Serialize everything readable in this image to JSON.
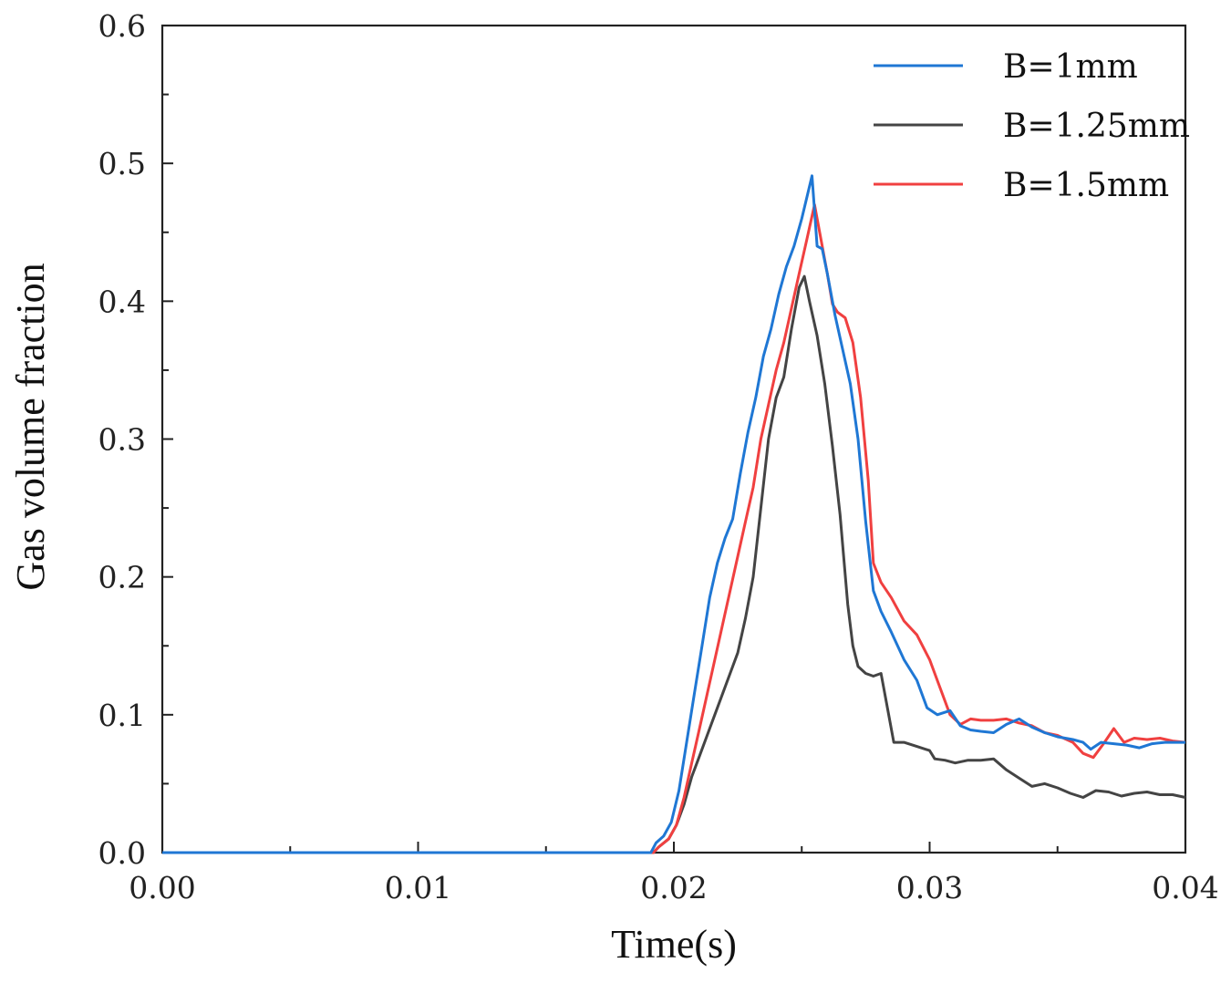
{
  "chart_data": {
    "type": "line",
    "title": "",
    "xlabel": "Time(s)",
    "ylabel": "Gas volume fraction",
    "xlim": [
      0.0,
      0.04
    ],
    "ylim": [
      0.0,
      0.6
    ],
    "xticks": [
      "0.00",
      "0.01",
      "0.02",
      "0.03",
      "0.04"
    ],
    "xtick_values": [
      0.0,
      0.01,
      0.02,
      0.03,
      0.04
    ],
    "yticks": [
      "0.0",
      "0.1",
      "0.2",
      "0.3",
      "0.4",
      "0.5",
      "0.6"
    ],
    "ytick_values": [
      0.0,
      0.1,
      0.2,
      0.3,
      0.4,
      0.5,
      0.6
    ],
    "grid": false,
    "legend_position": "top-right",
    "series": [
      {
        "name": "B=1mm",
        "color": "#1f77d4",
        "points": [
          [
            0.0,
            0.0
          ],
          [
            0.0191,
            0.0
          ],
          [
            0.0193,
            0.007
          ],
          [
            0.0196,
            0.012
          ],
          [
            0.0199,
            0.022
          ],
          [
            0.0202,
            0.045
          ],
          [
            0.0205,
            0.08
          ],
          [
            0.0208,
            0.115
          ],
          [
            0.0211,
            0.15
          ],
          [
            0.0214,
            0.185
          ],
          [
            0.0217,
            0.21
          ],
          [
            0.022,
            0.228
          ],
          [
            0.0223,
            0.242
          ],
          [
            0.0226,
            0.275
          ],
          [
            0.0229,
            0.305
          ],
          [
            0.0232,
            0.33
          ],
          [
            0.0235,
            0.36
          ],
          [
            0.0238,
            0.38
          ],
          [
            0.0241,
            0.405
          ],
          [
            0.0244,
            0.425
          ],
          [
            0.0247,
            0.44
          ],
          [
            0.025,
            0.46
          ],
          [
            0.0254,
            0.491
          ],
          [
            0.0256,
            0.44
          ],
          [
            0.0258,
            0.438
          ],
          [
            0.026,
            0.42
          ],
          [
            0.0263,
            0.39
          ],
          [
            0.0266,
            0.365
          ],
          [
            0.0269,
            0.34
          ],
          [
            0.0272,
            0.3
          ],
          [
            0.0275,
            0.24
          ],
          [
            0.0278,
            0.19
          ],
          [
            0.0281,
            0.175
          ],
          [
            0.0285,
            0.16
          ],
          [
            0.029,
            0.14
          ],
          [
            0.0295,
            0.125
          ],
          [
            0.0299,
            0.105
          ],
          [
            0.0303,
            0.1
          ],
          [
            0.0308,
            0.103
          ],
          [
            0.0312,
            0.092
          ],
          [
            0.0316,
            0.089
          ],
          [
            0.032,
            0.088
          ],
          [
            0.0325,
            0.087
          ],
          [
            0.033,
            0.093
          ],
          [
            0.0335,
            0.097
          ],
          [
            0.034,
            0.091
          ],
          [
            0.0345,
            0.087
          ],
          [
            0.035,
            0.084
          ],
          [
            0.0356,
            0.082
          ],
          [
            0.036,
            0.08
          ],
          [
            0.0363,
            0.075
          ],
          [
            0.0367,
            0.08
          ],
          [
            0.0372,
            0.079
          ],
          [
            0.0377,
            0.078
          ],
          [
            0.0382,
            0.076
          ],
          [
            0.0387,
            0.079
          ],
          [
            0.0392,
            0.08
          ],
          [
            0.04,
            0.08
          ]
        ]
      },
      {
        "name": "B=1.25mm",
        "color": "#444444",
        "points": [
          [
            0.0,
            0.0
          ],
          [
            0.0192,
            0.0
          ],
          [
            0.0194,
            0.004
          ],
          [
            0.0198,
            0.01
          ],
          [
            0.0201,
            0.02
          ],
          [
            0.0204,
            0.035
          ],
          [
            0.0207,
            0.055
          ],
          [
            0.021,
            0.07
          ],
          [
            0.0213,
            0.085
          ],
          [
            0.0216,
            0.1
          ],
          [
            0.0219,
            0.115
          ],
          [
            0.0222,
            0.13
          ],
          [
            0.0225,
            0.145
          ],
          [
            0.0228,
            0.17
          ],
          [
            0.0231,
            0.2
          ],
          [
            0.0234,
            0.25
          ],
          [
            0.0237,
            0.3
          ],
          [
            0.024,
            0.33
          ],
          [
            0.0243,
            0.345
          ],
          [
            0.0246,
            0.38
          ],
          [
            0.0249,
            0.41
          ],
          [
            0.0251,
            0.418
          ],
          [
            0.0253,
            0.4
          ],
          [
            0.0256,
            0.375
          ],
          [
            0.0259,
            0.34
          ],
          [
            0.0262,
            0.295
          ],
          [
            0.0265,
            0.245
          ],
          [
            0.0268,
            0.18
          ],
          [
            0.027,
            0.15
          ],
          [
            0.0272,
            0.135
          ],
          [
            0.0275,
            0.13
          ],
          [
            0.0278,
            0.128
          ],
          [
            0.0281,
            0.13
          ],
          [
            0.0283,
            0.11
          ],
          [
            0.0286,
            0.08
          ],
          [
            0.029,
            0.08
          ],
          [
            0.0295,
            0.077
          ],
          [
            0.03,
            0.074
          ],
          [
            0.0302,
            0.068
          ],
          [
            0.0306,
            0.067
          ],
          [
            0.031,
            0.065
          ],
          [
            0.0315,
            0.067
          ],
          [
            0.032,
            0.067
          ],
          [
            0.0325,
            0.068
          ],
          [
            0.033,
            0.06
          ],
          [
            0.0335,
            0.054
          ],
          [
            0.034,
            0.048
          ],
          [
            0.0345,
            0.05
          ],
          [
            0.035,
            0.047
          ],
          [
            0.0355,
            0.043
          ],
          [
            0.036,
            0.04
          ],
          [
            0.0365,
            0.045
          ],
          [
            0.037,
            0.044
          ],
          [
            0.0375,
            0.041
          ],
          [
            0.038,
            0.043
          ],
          [
            0.0385,
            0.044
          ],
          [
            0.039,
            0.042
          ],
          [
            0.0395,
            0.042
          ],
          [
            0.04,
            0.04
          ]
        ]
      },
      {
        "name": "B=1.5mm",
        "color": "#f04040",
        "points": [
          [
            0.0,
            0.0
          ],
          [
            0.0192,
            0.0
          ],
          [
            0.0194,
            0.004
          ],
          [
            0.0198,
            0.01
          ],
          [
            0.0201,
            0.02
          ],
          [
            0.0204,
            0.04
          ],
          [
            0.0207,
            0.065
          ],
          [
            0.021,
            0.09
          ],
          [
            0.0213,
            0.115
          ],
          [
            0.0216,
            0.14
          ],
          [
            0.0219,
            0.165
          ],
          [
            0.0222,
            0.19
          ],
          [
            0.0225,
            0.215
          ],
          [
            0.0228,
            0.24
          ],
          [
            0.0231,
            0.265
          ],
          [
            0.0234,
            0.3
          ],
          [
            0.0237,
            0.325
          ],
          [
            0.024,
            0.35
          ],
          [
            0.0243,
            0.37
          ],
          [
            0.0246,
            0.395
          ],
          [
            0.0249,
            0.42
          ],
          [
            0.0252,
            0.445
          ],
          [
            0.0255,
            0.47
          ],
          [
            0.0258,
            0.44
          ],
          [
            0.026,
            0.42
          ],
          [
            0.0262,
            0.398
          ],
          [
            0.0264,
            0.392
          ],
          [
            0.0267,
            0.388
          ],
          [
            0.027,
            0.37
          ],
          [
            0.0273,
            0.33
          ],
          [
            0.0276,
            0.27
          ],
          [
            0.0278,
            0.21
          ],
          [
            0.0281,
            0.196
          ],
          [
            0.0285,
            0.185
          ],
          [
            0.029,
            0.168
          ],
          [
            0.0295,
            0.158
          ],
          [
            0.03,
            0.14
          ],
          [
            0.0304,
            0.12
          ],
          [
            0.0308,
            0.1
          ],
          [
            0.0312,
            0.093
          ],
          [
            0.0316,
            0.097
          ],
          [
            0.032,
            0.096
          ],
          [
            0.0325,
            0.096
          ],
          [
            0.033,
            0.097
          ],
          [
            0.0335,
            0.094
          ],
          [
            0.034,
            0.092
          ],
          [
            0.0345,
            0.087
          ],
          [
            0.035,
            0.085
          ],
          [
            0.0356,
            0.08
          ],
          [
            0.036,
            0.072
          ],
          [
            0.0364,
            0.069
          ],
          [
            0.0368,
            0.079
          ],
          [
            0.0372,
            0.09
          ],
          [
            0.0376,
            0.08
          ],
          [
            0.038,
            0.083
          ],
          [
            0.0385,
            0.082
          ],
          [
            0.039,
            0.083
          ],
          [
            0.0395,
            0.081
          ],
          [
            0.04,
            0.08
          ]
        ]
      }
    ]
  }
}
